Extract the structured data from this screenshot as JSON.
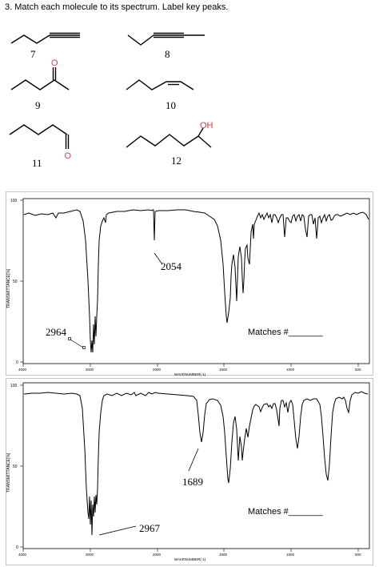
{
  "question": "3. Match each molecule to its spectrum. Label key peaks.",
  "molecules": [
    {
      "number": "7"
    },
    {
      "number": "8"
    },
    {
      "number": "9",
      "atom": "O"
    },
    {
      "number": "10"
    },
    {
      "number": "11",
      "atom": "O"
    },
    {
      "number": "12",
      "atom": "OH"
    }
  ],
  "spectra": [
    {
      "y_axis_label": "TRANSMITTANCE[%]",
      "x_axis_label": "WAVENUMBER(-1)",
      "y_ticks": [
        "100",
        "50",
        "0"
      ],
      "x_ticks": [
        "4000",
        "3000",
        "2000",
        "1500",
        "1000",
        "500"
      ],
      "annotations": [
        "2054",
        "2964"
      ],
      "matches_text": "Matches #_______"
    },
    {
      "y_axis_label": "TRANSMITTANCE[%]",
      "x_axis_label": "WAVENUMBER(-1)",
      "y_ticks": [
        "100",
        "50",
        "0"
      ],
      "x_ticks": [
        "4000",
        "3000",
        "2000",
        "1500",
        "1000",
        "500"
      ],
      "annotations": [
        "1689",
        "2967"
      ],
      "matches_text": "Matches #_______"
    }
  ],
  "colors": {
    "oxygen": "#e53935",
    "trace": "#000000"
  }
}
